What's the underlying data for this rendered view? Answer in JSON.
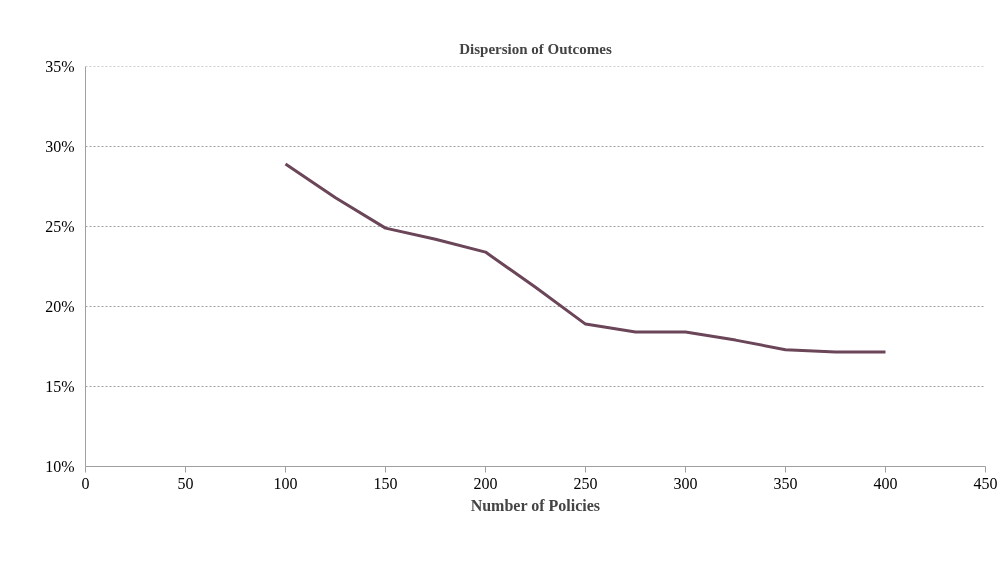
{
  "chart_data": {
    "type": "line",
    "title": "Dispersion of Outcomes",
    "xlabel": "Number of Policies",
    "x": [
      100,
      125,
      150,
      175,
      200,
      225,
      250,
      275,
      300,
      325,
      350,
      375,
      400
    ],
    "series": [
      {
        "color": "#6b4558",
        "values": [
          28.9,
          26.8,
          24.9,
          24.2,
          23.4,
          21.2,
          18.9,
          18.4,
          18.4,
          17.9,
          17.3,
          17.15,
          17.15
        ]
      }
    ],
    "xlim": [
      0,
      450
    ],
    "xticks": [
      0,
      50,
      100,
      150,
      200,
      250,
      300,
      350,
      400,
      450
    ],
    "ylim": [
      10,
      35
    ],
    "yticks": [
      {
        "value": 10,
        "label": "10%"
      },
      {
        "value": 15,
        "label": "15%"
      },
      {
        "value": 20,
        "label": "20%"
      },
      {
        "value": 25,
        "label": "25%"
      },
      {
        "value": 30,
        "label": "30%"
      },
      {
        "value": 35,
        "label": "35%"
      }
    ],
    "grid": "y",
    "marker": "none",
    "line_style": "solid"
  }
}
